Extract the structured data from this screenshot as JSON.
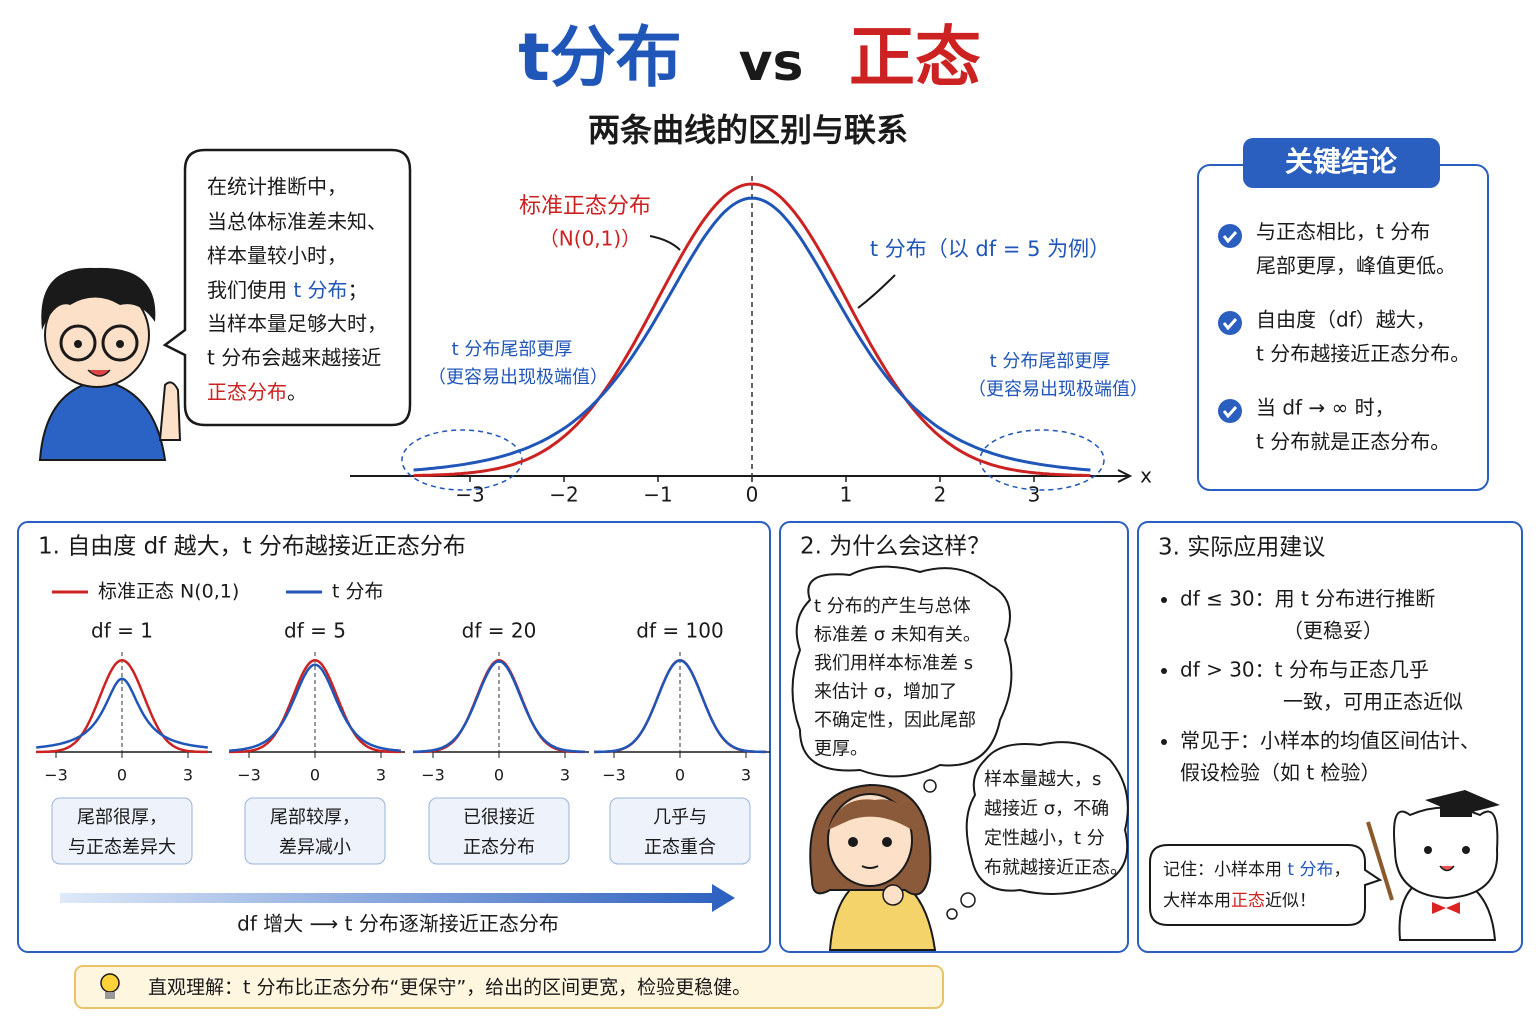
{
  "header": {
    "title_t": "t分布",
    "title_vs": "vs",
    "title_normal": "正态",
    "subtitle": "两条曲线的区别与联系"
  },
  "intro_bubble": {
    "lines": [
      "在统计推断中，",
      "当总体标准差未知、",
      "样本量较小时，"
    ],
    "line4": [
      "我们使用 ",
      "t 分布",
      "；"
    ],
    "line5": "当样本量足够大时，",
    "line6": "t 分布会越来越接近",
    "line7": [
      "正态分布",
      "。"
    ]
  },
  "main_chart": {
    "normal_label": "标准正态分布",
    "normal_sub": "（N(0,1)）",
    "t_label": "t 分布（以 df = 5 为例）",
    "df": 5,
    "x_label": "x",
    "xticks": [
      {
        "value": -3,
        "label": "−3"
      },
      {
        "value": -2,
        "label": "−2"
      },
      {
        "value": -1,
        "label": "−1"
      },
      0,
      1,
      2,
      3
    ],
    "tail_notes": [
      [
        "t 分布尾部更厚",
        "（更容易出现极端值）"
      ],
      [
        "t 分布尾部更厚",
        "（更容易出现极端值）"
      ]
    ]
  },
  "key_conclusions": {
    "title": "关键结论",
    "items": [
      [
        "与正态相比，t 分布",
        "尾部更厚，峰值更低。"
      ],
      [
        "自由度（df）越大，",
        "t 分布越接近正态分布。"
      ],
      [
        "当 df → ∞ 时，",
        "t 分布就是正态分布。"
      ]
    ]
  },
  "panel1": {
    "title": "1. 自由度 df 越大，t 分布越接近正态分布",
    "legend": [
      "标准正态 N(0,1)",
      "t 分布"
    ],
    "plots": [
      {
        "label": "df = 1",
        "df": 1,
        "xticks": [
          {
            "value": -3,
            "label": "−3"
          },
          0,
          3
        ],
        "note": [
          "尾部很厚，",
          "与正态差异大"
        ]
      },
      {
        "label": "df = 5",
        "df": 5,
        "xticks": [
          {
            "value": -3,
            "label": "−3"
          },
          0,
          3
        ],
        "note": [
          "尾部较厚，",
          "差异减小"
        ]
      },
      {
        "label": "df = 20",
        "df": 20,
        "xticks": [
          {
            "value": -3,
            "label": "−3"
          },
          0,
          3
        ],
        "note": [
          "已很接近",
          "正态分布"
        ]
      },
      {
        "label": "df = 100",
        "df": 100,
        "xticks": [
          {
            "value": -3,
            "label": "−3"
          },
          0,
          3
        ],
        "note": [
          "几乎与",
          "正态重合"
        ]
      }
    ],
    "arrow_caption": "df 增大 ⟶ t 分布逐渐接近正态分布"
  },
  "panel2": {
    "title": "2. 为什么会这样？",
    "cloud1": [
      "t 分布的产生与总体",
      "标准差 σ 未知有关。",
      "我们用样本标准差 s",
      "来估计 σ，增加了",
      "不确定性，因此尾部",
      "更厚。"
    ],
    "cloud2": [
      "样本量越大，s",
      "越接近 σ，不确",
      "定性越小，t 分",
      "布就越接近正态。"
    ]
  },
  "panel3": {
    "title": "3. 实际应用建议",
    "bullets": [
      [
        "df ≤ 30：用 t 分布进行推断",
        "（更稳妥）"
      ],
      [
        "df > 30：t 分布与正态几乎",
        "一致，可用正态近似"
      ],
      [
        "常见于：小样本的均值区间估计、",
        "假设检验（如 t 检验）"
      ]
    ],
    "note_line1": [
      "记住：小样本用 ",
      "t 分布",
      "，"
    ],
    "note_line2": [
      "大样本用",
      "正态",
      "近似！"
    ]
  },
  "footer": "直观理解：t 分布比正态分布“更保守”，给出的区间更宽，检验更稳健。"
}
